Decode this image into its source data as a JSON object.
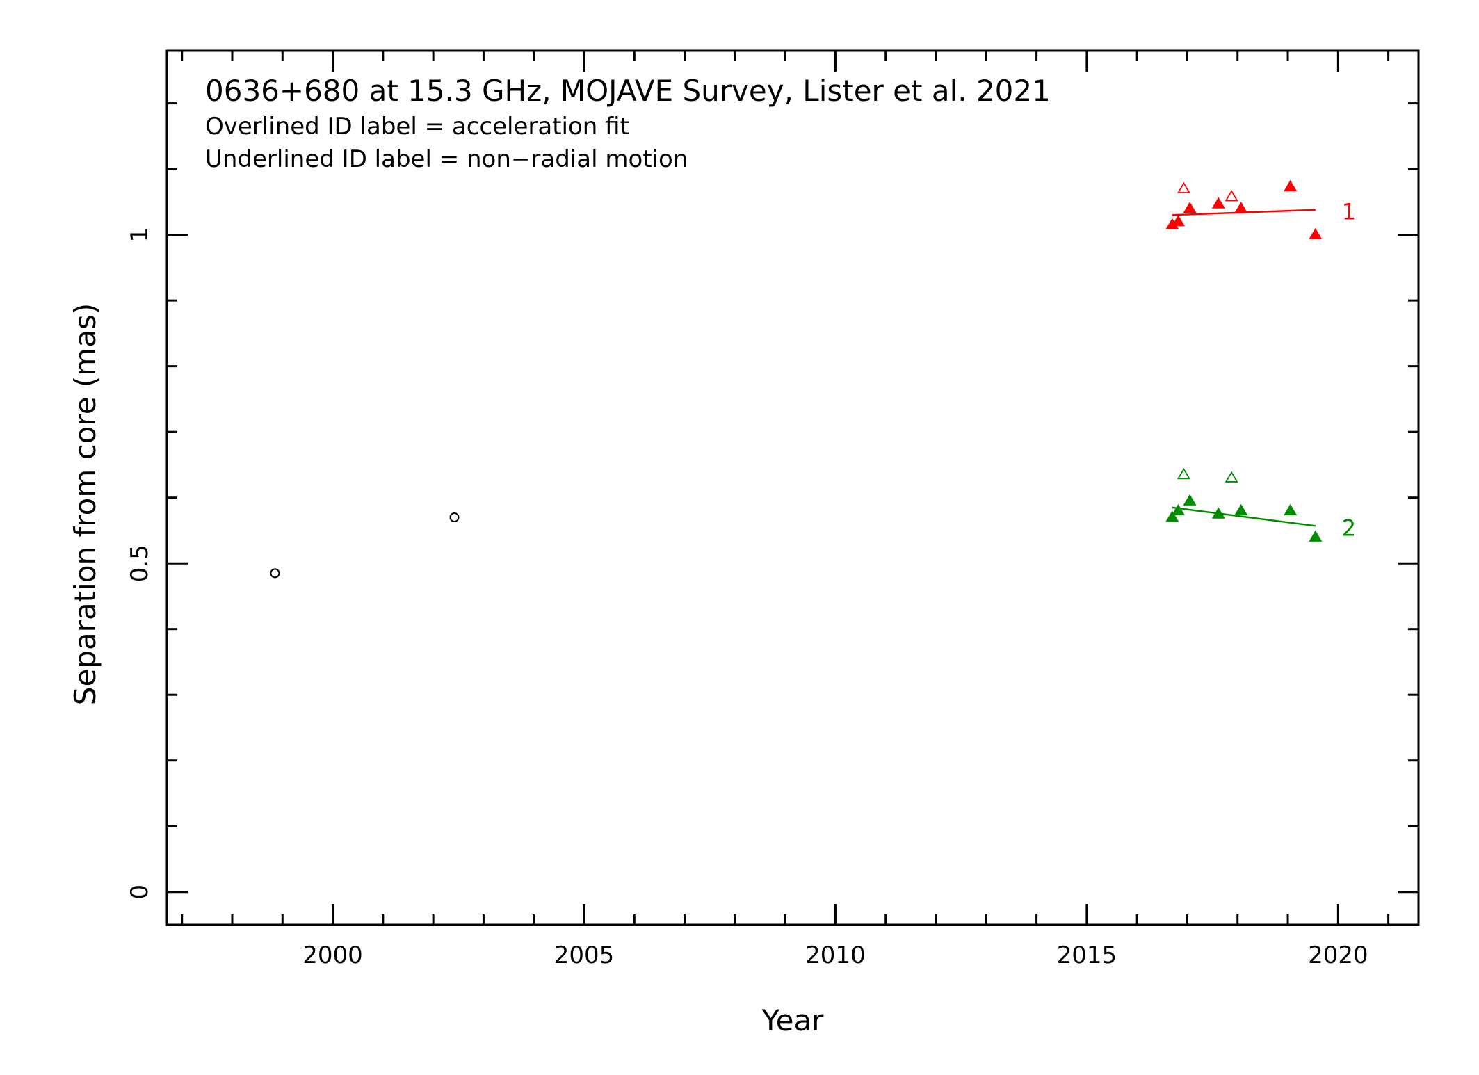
{
  "chart_data": {
    "type": "scatter",
    "title": "0636+680 at 15.3 GHz, MOJAVE Survey, Lister et al. 2021",
    "annotations": [
      "Overlined ID label = acceleration fit",
      "Underlined ID label = non−radial motion"
    ],
    "xlabel": "Year",
    "ylabel": "Separation from core (mas)",
    "xlim": [
      1996.7,
      2021.6
    ],
    "ylim": [
      -0.05,
      1.28
    ],
    "x_ticks": [
      2000,
      2005,
      2010,
      2015,
      2020
    ],
    "x_tick_labels": [
      "2000",
      "2005",
      "2010",
      "2015",
      "2020"
    ],
    "y_ticks": [
      0,
      0.5,
      1
    ],
    "y_tick_labels": [
      "0",
      "0.5",
      "1"
    ],
    "grid": false,
    "series": [
      {
        "name": "1",
        "color": "#ff0000",
        "marker": "triangle",
        "points": [
          {
            "x": 2016.7,
            "y": 1.015,
            "filled": true
          },
          {
            "x": 2016.82,
            "y": 1.02,
            "filled": true
          },
          {
            "x": 2016.93,
            "y": 1.07,
            "filled": false
          },
          {
            "x": 2017.05,
            "y": 1.04,
            "filled": true
          },
          {
            "x": 2017.62,
            "y": 1.047,
            "filled": true
          },
          {
            "x": 2017.88,
            "y": 1.058,
            "filled": false
          },
          {
            "x": 2018.07,
            "y": 1.04,
            "filled": true
          },
          {
            "x": 2019.05,
            "y": 1.073,
            "filled": true
          },
          {
            "x": 2019.55,
            "y": 1.0,
            "filled": true
          }
        ],
        "fit": [
          [
            2016.7,
            1.03
          ],
          [
            2019.55,
            1.038
          ]
        ]
      },
      {
        "name": "2",
        "color": "#008c00",
        "marker": "triangle",
        "points": [
          {
            "x": 2016.7,
            "y": 0.57,
            "filled": true
          },
          {
            "x": 2016.82,
            "y": 0.58,
            "filled": true
          },
          {
            "x": 2016.93,
            "y": 0.635,
            "filled": false
          },
          {
            "x": 2017.05,
            "y": 0.595,
            "filled": true
          },
          {
            "x": 2017.62,
            "y": 0.575,
            "filled": true
          },
          {
            "x": 2017.88,
            "y": 0.63,
            "filled": false
          },
          {
            "x": 2018.07,
            "y": 0.58,
            "filled": true
          },
          {
            "x": 2019.05,
            "y": 0.58,
            "filled": true
          },
          {
            "x": 2019.55,
            "y": 0.54,
            "filled": true
          }
        ],
        "fit": [
          [
            2016.7,
            0.585
          ],
          [
            2019.55,
            0.557
          ]
        ]
      },
      {
        "name": "",
        "color": "#000000",
        "marker": "circle-open",
        "points": [
          {
            "x": 1998.85,
            "y": 0.485,
            "filled": false
          },
          {
            "x": 2002.42,
            "y": 0.57,
            "filled": false
          }
        ]
      }
    ]
  }
}
